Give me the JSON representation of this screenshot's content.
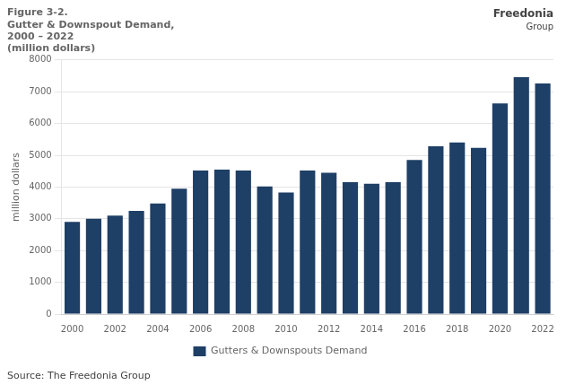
{
  "chart_data": {
    "type": "bar",
    "title": [
      "Figure 3-2.",
      "Gutter & Downspout Demand,",
      "2000 – 2022",
      "(million dollars)"
    ],
    "categories": [
      "2000",
      null,
      "2002",
      null,
      "2004",
      null,
      "2006",
      null,
      "2008",
      null,
      "2010",
      null,
      "2012",
      null,
      "2014",
      null,
      "2016",
      null,
      "2018",
      null,
      "2020",
      null,
      "2022"
    ],
    "series": [
      {
        "name": "Gutters & Downspouts Demand",
        "color": "#1e3f66",
        "values": [
          2900,
          3000,
          3100,
          3250,
          3480,
          3950,
          4520,
          4550,
          4520,
          4020,
          3830,
          4520,
          4450,
          4150,
          4100,
          4150,
          4850,
          5280,
          5400,
          5230,
          6630,
          7460,
          7260
        ]
      }
    ],
    "ylabel": "million dollars",
    "ylim": [
      0,
      8000
    ],
    "yticks": [
      0,
      1000,
      2000,
      3000,
      4000,
      5000,
      6000,
      7000,
      8000
    ],
    "grid": true,
    "legend": "bottom",
    "annotations": [
      "Freedonia",
      "Group",
      "Source: The Freedonia Group"
    ]
  }
}
